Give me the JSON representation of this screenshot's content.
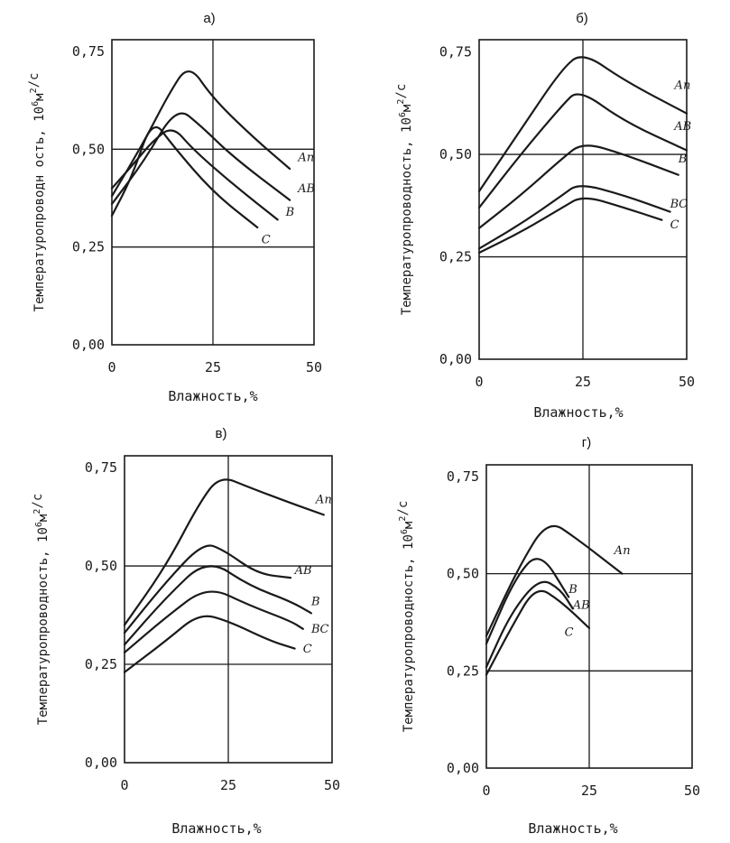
{
  "chart_data": [
    {
      "type": "line",
      "title": "а)",
      "xlabel": "Влажность,%",
      "ylabel": "Температуропроводность, 10⁶м²/с",
      "ylabel_main": "Температуропроводн ость, 10",
      "ylabel_sup1": "6",
      "ylabel_unit": "м",
      "ylabel_sup2": "2",
      "ylabel_tail": "/с",
      "xlim": [
        0,
        50
      ],
      "ylim": [
        0,
        0.78
      ],
      "x_ticks": [
        "0",
        "25",
        "50"
      ],
      "y_ticks": [
        "0,00",
        "0,25",
        "0,50",
        "0,75"
      ],
      "grid": {
        "x": [
          25
        ],
        "y": [
          0.25,
          0.5
        ]
      },
      "series": [
        {
          "name": "Ап",
          "label_pos": [
            46,
            0.47
          ],
          "points": [
            [
              0,
              0.38
            ],
            [
              8,
              0.52
            ],
            [
              14,
              0.64
            ],
            [
              19,
              0.72
            ],
            [
              25,
              0.63
            ],
            [
              35,
              0.53
            ],
            [
              44,
              0.45
            ]
          ]
        },
        {
          "name": "AB",
          "label_pos": [
            46,
            0.39
          ],
          "points": [
            [
              0,
              0.36
            ],
            [
              8,
              0.47
            ],
            [
              16,
              0.61
            ],
            [
              22,
              0.56
            ],
            [
              30,
              0.48
            ],
            [
              44,
              0.37
            ]
          ]
        },
        {
          "name": "В",
          "label_pos": [
            43,
            0.33
          ],
          "points": [
            [
              0,
              0.4
            ],
            [
              6,
              0.47
            ],
            [
              10,
              0.52
            ],
            [
              15,
              0.56
            ],
            [
              20,
              0.5
            ],
            [
              30,
              0.41
            ],
            [
              41,
              0.32
            ]
          ]
        },
        {
          "name": "С",
          "label_pos": [
            37,
            0.26
          ],
          "points": [
            [
              0,
              0.33
            ],
            [
              5,
              0.43
            ],
            [
              10,
              0.58
            ],
            [
              15,
              0.51
            ],
            [
              25,
              0.39
            ],
            [
              36,
              0.3
            ]
          ]
        }
      ]
    },
    {
      "type": "line",
      "title": "б)",
      "xlabel": "Влажность,%",
      "ylabel": "Температуропроводность, 10⁶м²/с",
      "ylabel_main": "Температуропроводность, 10",
      "ylabel_sup1": "6",
      "ylabel_unit": "м",
      "ylabel_sup2": "2",
      "ylabel_tail": "/с",
      "xlim": [
        0,
        50
      ],
      "ylim": [
        0,
        0.78
      ],
      "x_ticks": [
        "0",
        "25",
        "50"
      ],
      "y_ticks": [
        "0,00",
        "0,25",
        "0,50",
        "0,75"
      ],
      "grid": {
        "x": [
          25
        ],
        "y": [
          0.25,
          0.5
        ]
      },
      "series": [
        {
          "name": "Ап",
          "label_pos": [
            47,
            0.66
          ],
          "points": [
            [
              0,
              0.41
            ],
            [
              10,
              0.56
            ],
            [
              20,
              0.71
            ],
            [
              25,
              0.75
            ],
            [
              35,
              0.68
            ],
            [
              50,
              0.6
            ]
          ]
        },
        {
          "name": "AB",
          "label_pos": [
            47,
            0.56
          ],
          "points": [
            [
              0,
              0.37
            ],
            [
              10,
              0.5
            ],
            [
              20,
              0.62
            ],
            [
              24,
              0.66
            ],
            [
              35,
              0.58
            ],
            [
              50,
              0.51
            ]
          ]
        },
        {
          "name": "В",
          "label_pos": [
            48,
            0.48
          ],
          "points": [
            [
              0,
              0.32
            ],
            [
              10,
              0.4
            ],
            [
              20,
              0.49
            ],
            [
              25,
              0.53
            ],
            [
              35,
              0.5
            ],
            [
              48,
              0.45
            ]
          ]
        },
        {
          "name": "ВС",
          "label_pos": [
            46,
            0.37
          ],
          "points": [
            [
              0,
              0.27
            ],
            [
              10,
              0.33
            ],
            [
              20,
              0.4
            ],
            [
              24,
              0.43
            ],
            [
              35,
              0.4
            ],
            [
              46,
              0.36
            ]
          ]
        },
        {
          "name": "С",
          "label_pos": [
            46,
            0.32
          ],
          "points": [
            [
              0,
              0.26
            ],
            [
              10,
              0.31
            ],
            [
              20,
              0.37
            ],
            [
              25,
              0.4
            ],
            [
              35,
              0.37
            ],
            [
              44,
              0.34
            ]
          ]
        }
      ]
    },
    {
      "type": "line",
      "title": "в)",
      "xlabel": "Влажность,%",
      "ylabel": "Температуропроводность, 10⁶м²/с",
      "ylabel_main": "Температуропроводность, 10",
      "ylabel_sup1": "6",
      "ylabel_unit": "м",
      "ylabel_sup2": "2",
      "ylabel_tail": "/с",
      "xlim": [
        0,
        50
      ],
      "ylim": [
        0,
        0.78
      ],
      "x_ticks": [
        "0",
        "25",
        "50"
      ],
      "y_ticks": [
        "0,00",
        "0,25",
        "0,50",
        "0,75"
      ],
      "grid": {
        "x": [
          25
        ],
        "y": [
          0.25,
          0.5
        ]
      },
      "series": [
        {
          "name": "Ап",
          "label_pos": [
            46,
            0.66
          ],
          "points": [
            [
              0,
              0.35
            ],
            [
              10,
              0.5
            ],
            [
              18,
              0.66
            ],
            [
              23,
              0.73
            ],
            [
              30,
              0.7
            ],
            [
              40,
              0.66
            ],
            [
              48,
              0.63
            ]
          ]
        },
        {
          "name": "AB",
          "label_pos": [
            41,
            0.48
          ],
          "points": [
            [
              0,
              0.33
            ],
            [
              10,
              0.46
            ],
            [
              19,
              0.56
            ],
            [
              24,
              0.54
            ],
            [
              32,
              0.48
            ],
            [
              40,
              0.47
            ]
          ]
        },
        {
          "name": "В",
          "label_pos": [
            45,
            0.4
          ],
          "points": [
            [
              0,
              0.3
            ],
            [
              10,
              0.42
            ],
            [
              20,
              0.52
            ],
            [
              30,
              0.45
            ],
            [
              40,
              0.41
            ],
            [
              45,
              0.38
            ]
          ]
        },
        {
          "name": "ВС",
          "label_pos": [
            45,
            0.33
          ],
          "points": [
            [
              0,
              0.28
            ],
            [
              10,
              0.37
            ],
            [
              20,
              0.45
            ],
            [
              30,
              0.4
            ],
            [
              40,
              0.36
            ],
            [
              43,
              0.34
            ]
          ]
        },
        {
          "name": "С",
          "label_pos": [
            43,
            0.28
          ],
          "points": [
            [
              0,
              0.23
            ],
            [
              10,
              0.31
            ],
            [
              18,
              0.38
            ],
            [
              25,
              0.36
            ],
            [
              35,
              0.31
            ],
            [
              41,
              0.29
            ]
          ]
        }
      ]
    },
    {
      "type": "line",
      "title": "г)",
      "xlabel": "Влажность,%",
      "ylabel": "Температуропроводность, 10⁶м²/с",
      "ylabel_main": "Температуропроводность, 10",
      "ylabel_sup1": "6",
      "ylabel_unit": "м",
      "ylabel_sup2": "2",
      "ylabel_tail": "/с",
      "xlim": [
        0,
        50
      ],
      "ylim": [
        0,
        0.78
      ],
      "x_ticks": [
        "0",
        "25",
        "50"
      ],
      "y_ticks": [
        "0,00",
        "0,25",
        "0,50",
        "0,75"
      ],
      "grid": {
        "x": [
          25
        ],
        "y": [
          0.25,
          0.5
        ]
      },
      "series": [
        {
          "name": "Ап",
          "label_pos": [
            31,
            0.55
          ],
          "points": [
            [
              0,
              0.34
            ],
            [
              8,
              0.52
            ],
            [
              15,
              0.64
            ],
            [
              22,
              0.59
            ],
            [
              33,
              0.5
            ]
          ]
        },
        {
          "name": "В",
          "label_pos": [
            20,
            0.45
          ],
          "points": [
            [
              0,
              0.32
            ],
            [
              7,
              0.49
            ],
            [
              13,
              0.56
            ],
            [
              20,
              0.44
            ]
          ]
        },
        {
          "name": "AB",
          "label_pos": [
            21,
            0.41
          ],
          "points": [
            [
              0,
              0.26
            ],
            [
              6,
              0.4
            ],
            [
              13,
              0.49
            ],
            [
              18,
              0.46
            ],
            [
              21,
              0.41
            ]
          ]
        },
        {
          "name": "С",
          "label_pos": [
            19,
            0.34
          ],
          "points": [
            [
              0,
              0.24
            ],
            [
              6,
              0.36
            ],
            [
              12,
              0.47
            ],
            [
              18,
              0.43
            ],
            [
              25,
              0.36
            ]
          ]
        }
      ]
    }
  ]
}
